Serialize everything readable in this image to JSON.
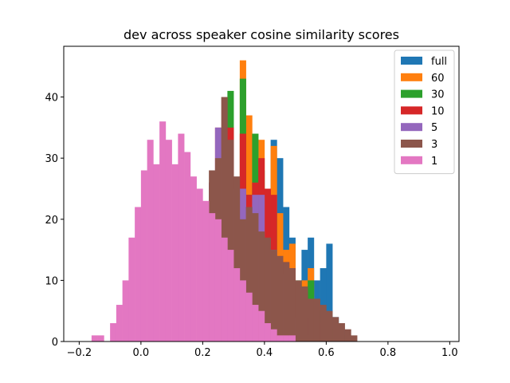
{
  "chart_data": {
    "type": "bar",
    "subtype": "overlaid-histogram",
    "title": "dev across speaker cosine similarity scores",
    "xlabel": "",
    "ylabel": "",
    "xlim": [
      -0.25,
      1.03
    ],
    "ylim": [
      0,
      48.3
    ],
    "xticks": [
      -0.2,
      0.0,
      0.2,
      0.4,
      0.6,
      0.8,
      1.0
    ],
    "xtick_labels": [
      "−0.2",
      "0.0",
      "0.2",
      "0.4",
      "0.6",
      "0.8",
      "1.0"
    ],
    "yticks": [
      0,
      10,
      20,
      30,
      40
    ],
    "ytick_labels": [
      "0",
      "10",
      "20",
      "30",
      "40"
    ],
    "bin_width": 0.02,
    "legend_position": "top-right",
    "grid": false,
    "series": [
      {
        "name": "full",
        "color": "#1f77b4",
        "start": 0.34,
        "values": [
          20,
          13,
          16,
          21,
          33,
          30,
          22,
          17,
          8,
          15,
          17,
          10,
          12,
          16,
          4,
          2,
          1,
          0,
          0
        ]
      },
      {
        "name": "60",
        "color": "#ff7f0e",
        "start": 0.22,
        "values": [
          26,
          20,
          30,
          35,
          23,
          46,
          37,
          26,
          33,
          22,
          32,
          21,
          15,
          16,
          8,
          10,
          12,
          6,
          4,
          2,
          2,
          1,
          0
        ]
      },
      {
        "name": "30",
        "color": "#2ca02c",
        "start": 0.22,
        "values": [
          26,
          20,
          30,
          41,
          25,
          43,
          24,
          34,
          28,
          20,
          21,
          13,
          12,
          6,
          10,
          9,
          10,
          5,
          3,
          2,
          2,
          1
        ]
      },
      {
        "name": "10",
        "color": "#d62728",
        "start": 0.22,
        "values": [
          26,
          35,
          32,
          35,
          25,
          34,
          24,
          26,
          30,
          25,
          24,
          11,
          13,
          12,
          9,
          8,
          4,
          3,
          1,
          0,
          0
        ]
      },
      {
        "name": "5",
        "color": "#9467bd",
        "start": 0.22,
        "values": [
          26,
          35,
          32,
          25,
          21,
          25,
          18,
          24,
          24,
          13,
          15,
          11,
          8,
          4,
          3,
          1,
          1,
          0
        ]
      },
      {
        "name": "3",
        "color": "#8c564b",
        "start": -0.02,
        "values": [
          0,
          0,
          0,
          0,
          0,
          0,
          0,
          0,
          0,
          0,
          0,
          0,
          28,
          30,
          40,
          33,
          27,
          20,
          22,
          21,
          18,
          17,
          15,
          14,
          13,
          12,
          10,
          9,
          7,
          7,
          6,
          5,
          4,
          3,
          2,
          1,
          0
        ]
      },
      {
        "name": "1",
        "color": "#e377c2",
        "start": -0.16,
        "values": [
          1,
          1,
          0,
          3,
          6,
          10,
          17,
          22,
          28,
          33,
          29,
          36,
          33,
          29,
          34,
          31,
          27,
          25,
          23,
          21,
          20,
          17,
          15,
          12,
          10,
          8,
          6,
          5,
          3,
          2,
          1,
          1,
          1,
          0
        ]
      }
    ]
  }
}
